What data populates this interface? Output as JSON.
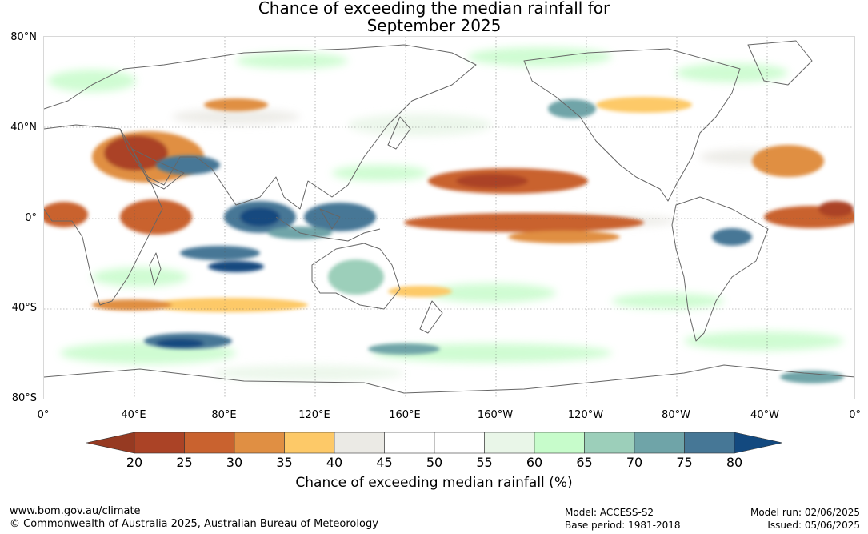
{
  "title": {
    "line1": "Chance of exceeding the median rainfall for",
    "line2": "September 2025"
  },
  "map": {
    "lat_labels": [
      "80°N",
      "40°N",
      "0°",
      "40°S",
      "80°S"
    ],
    "lon_labels": [
      "0°",
      "40°E",
      "80°E",
      "120°E",
      "160°E",
      "160°W",
      "120°W",
      "80°W",
      "40°W",
      "0°"
    ],
    "coastline_color": "#666666",
    "gridline_style": "dotted"
  },
  "colorbar": {
    "label": "Chance of exceeding median rainfall (%)",
    "ticks": [
      "20",
      "25",
      "30",
      "35",
      "40",
      "45",
      "50",
      "55",
      "60",
      "65",
      "70",
      "75",
      "80"
    ],
    "under_color": "#963a22",
    "over_color": "#13497f",
    "colors": [
      "#ab4326",
      "#c9622f",
      "#e08f43",
      "#fdc968",
      "#ebeae5",
      "#ffffff",
      "#ffffff",
      "#e9f6e8",
      "#c7fccb",
      "#9ccfba",
      "#6fa4a8",
      "#467796"
    ]
  },
  "footer": {
    "site": "www.bom.gov.au/climate",
    "copyright": "© Commonwealth of Australia 2025, Australian Bureau of Meteorology",
    "model": "Model: ACCESS-S2",
    "base_period": "Base period: 1981-2018",
    "model_run": "Model run: 02/06/2025",
    "issued": "Issued: 05/06/2025"
  }
}
